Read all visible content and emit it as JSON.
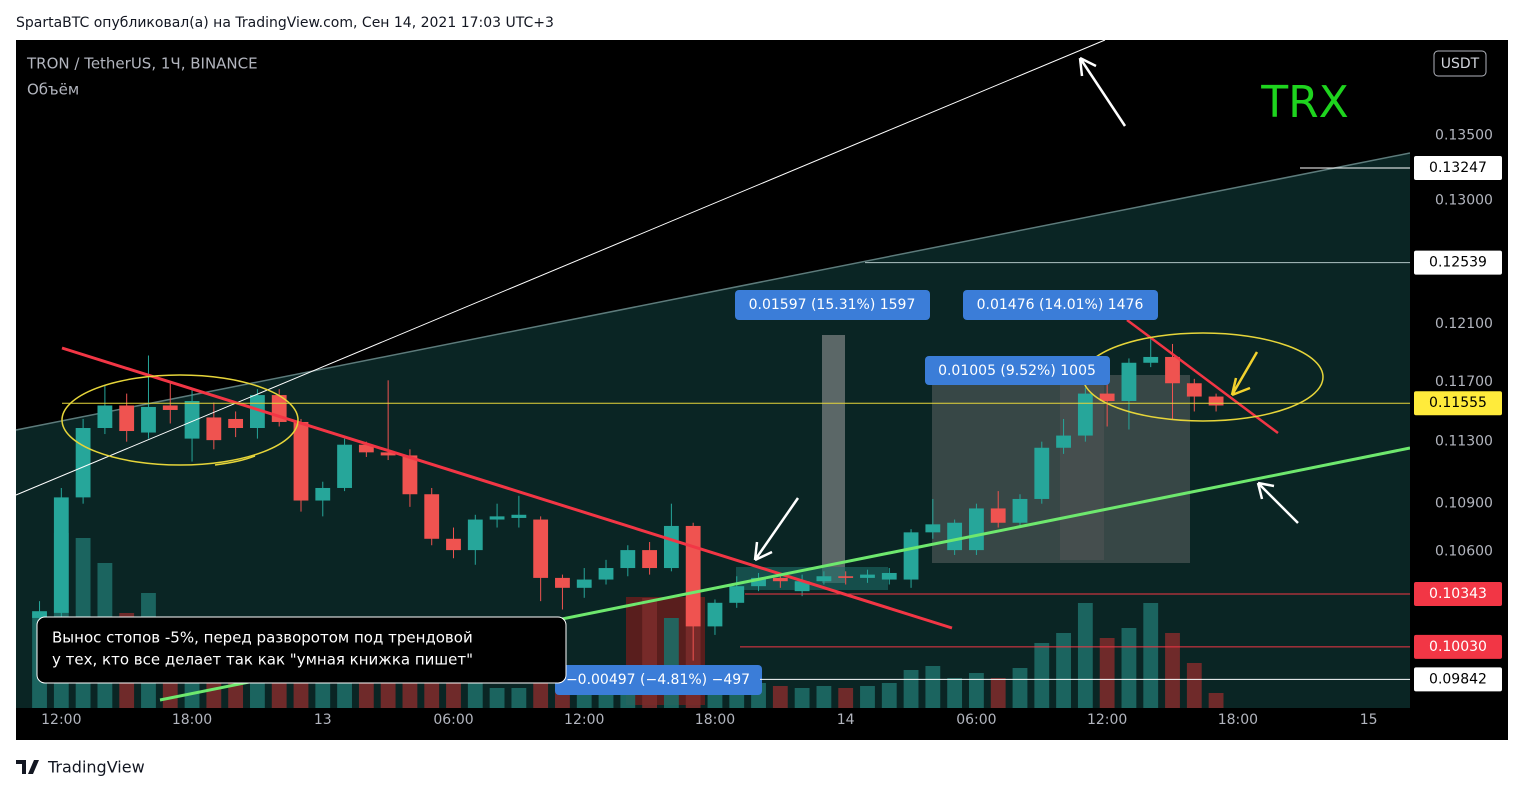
{
  "chart_data": {
    "type": "candlestick",
    "header": "SpartaBTC опубликовал(а) на TradingView.com, Сен 14, 2021 17:03 UTC+3",
    "title": "TRON / TetherUS, 1Ч, BINANCE",
    "volume_label": "Объём",
    "currency": "USDT",
    "annotation_big": "TRX",
    "callout": [
      "Вынос стопов -5%, перед разворотом под трендовой",
      "у тех, кто все делает так как  \"умная книжка пишет\""
    ],
    "measures": [
      "0.01597 (15.31%) 1597",
      "0.01476 (14.01%) 1476",
      "0.01005 (9.52%) 1005",
      "−0.00497 (−4.81%) −497"
    ],
    "footer": "TradingView",
    "log_scale": true,
    "up_color": "#26a69a",
    "down_color": "#ef5350",
    "xlim": [
      -14.08,
      49.9
    ],
    "xticks": [
      {
        "value": -12,
        "label": "12:00"
      },
      {
        "value": -6,
        "label": "18:00"
      },
      {
        "value": 0,
        "label": "13"
      },
      {
        "value": 6,
        "label": "06:00"
      },
      {
        "value": 12,
        "label": "12:00"
      },
      {
        "value": 18,
        "label": "18:00"
      },
      {
        "value": 24,
        "label": "14"
      },
      {
        "value": 30,
        "label": "06:00"
      },
      {
        "value": 36,
        "label": "12:00"
      },
      {
        "value": 42,
        "label": "18:00"
      },
      {
        "value": 48,
        "label": "15"
      }
    ],
    "ylim": [
      0.0968,
      0.1427
    ],
    "yticks": [
      {
        "value": 0.135,
        "label": "0.13500"
      },
      {
        "value": 0.13,
        "label": "0.13000"
      },
      {
        "value": 0.121,
        "label": "0.12100"
      },
      {
        "value": 0.117,
        "label": "0.11700"
      },
      {
        "value": 0.113,
        "label": "0.11300"
      },
      {
        "value": 0.109,
        "label": "0.10900"
      },
      {
        "value": 0.106,
        "label": "0.10600"
      }
    ],
    "price_lines": [
      {
        "value": 0.13247,
        "bg": "#ffffff",
        "fg": "#000000",
        "line": "#ffffff"
      },
      {
        "value": 0.12539,
        "bg": "#ffffff",
        "fg": "#000000",
        "line": "#b0c4c4"
      },
      {
        "value": 0.11555,
        "bg": "#ffeb3b",
        "fg": "#000000",
        "line": "#e6d53a"
      },
      {
        "value": 0.10343,
        "bg": "#f23645",
        "fg": "#ffffff",
        "line": "#f23645"
      },
      {
        "value": 0.1003,
        "label": "0.10030",
        "bg": "#f23645",
        "fg": "#ffffff",
        "line": "#f23645"
      },
      {
        "value": 0.09842,
        "bg": "#ffffff",
        "fg": "#000000",
        "line": "#ffffff"
      }
    ],
    "x": [
      -13,
      -12,
      -11,
      -10,
      -9,
      -8,
      -7,
      -6,
      -5,
      -4,
      -3,
      -2,
      -1,
      0,
      1,
      2,
      3,
      4,
      5,
      6,
      7,
      8,
      9,
      10,
      11,
      12,
      13,
      14,
      15,
      16,
      17,
      18,
      19,
      20,
      21,
      22,
      23,
      24,
      25,
      26,
      27,
      28,
      29,
      30,
      31,
      32,
      33,
      34,
      35,
      36,
      37,
      38,
      39,
      40,
      41
    ],
    "open": [
      0.102,
      0.1023,
      0.1094,
      0.1139,
      0.1154,
      0.1136,
      0.1154,
      0.1132,
      0.1146,
      0.1145,
      0.1139,
      0.1161,
      0.1143,
      0.1092,
      0.11,
      0.1128,
      0.1123,
      0.1121,
      0.1096,
      0.1068,
      0.1061,
      0.108,
      0.1081,
      0.108,
      0.1044,
      0.1038,
      0.1043,
      0.105,
      0.1061,
      0.105,
      0.1076,
      0.1015,
      0.1029,
      0.1039,
      0.1044,
      0.1036,
      0.1042,
      0.1045,
      0.1044,
      0.1043,
      0.1043,
      0.1072,
      0.1061,
      0.1061,
      0.1087,
      0.1078,
      0.1093,
      0.1126,
      0.1134,
      0.1162,
      0.1157,
      0.1183,
      0.1187,
      0.1169,
      0.116
    ],
    "close": [
      0.1024,
      0.1094,
      0.1139,
      0.1154,
      0.1137,
      0.1153,
      0.1151,
      0.1157,
      0.1131,
      0.1139,
      0.1161,
      0.1143,
      0.1092,
      0.11,
      0.1128,
      0.1123,
      0.1121,
      0.1096,
      0.1068,
      0.1061,
      0.108,
      0.1082,
      0.1083,
      0.1044,
      0.1038,
      0.1043,
      0.105,
      0.1061,
      0.105,
      0.1076,
      0.1015,
      0.1029,
      0.1039,
      0.1044,
      0.1042,
      0.1042,
      0.1045,
      0.1044,
      0.1046,
      0.1047,
      0.1072,
      0.1077,
      0.1078,
      0.1087,
      0.1078,
      0.1093,
      0.1126,
      0.1134,
      0.1162,
      0.1157,
      0.1183,
      0.1187,
      0.1169,
      0.116,
      0.1154
    ],
    "high": [
      0.103,
      0.11,
      0.1145,
      0.1168,
      0.1162,
      0.1188,
      0.117,
      0.1165,
      0.1156,
      0.115,
      0.1165,
      0.1165,
      0.1145,
      0.1104,
      0.1132,
      0.113,
      0.1171,
      0.1125,
      0.11,
      0.1075,
      0.1083,
      0.109,
      0.1095,
      0.1082,
      0.1046,
      0.105,
      0.1055,
      0.1064,
      0.1066,
      0.109,
      0.1078,
      0.1031,
      0.1045,
      0.1047,
      0.1047,
      0.1046,
      0.1048,
      0.1048,
      0.1049,
      0.105,
      0.1074,
      0.1093,
      0.108,
      0.109,
      0.1098,
      0.1096,
      0.113,
      0.1145,
      0.1166,
      0.117,
      0.1186,
      0.12,
      0.1196,
      0.1172,
      0.1162
    ],
    "low": [
      0.1015,
      0.102,
      0.109,
      0.1135,
      0.113,
      0.1132,
      0.1142,
      0.1117,
      0.1125,
      0.1133,
      0.1132,
      0.114,
      0.1085,
      0.1082,
      0.1098,
      0.112,
      0.1118,
      0.1088,
      0.1064,
      0.1056,
      0.1052,
      0.1075,
      0.1075,
      0.103,
      0.1025,
      0.1032,
      0.104,
      0.1045,
      0.1046,
      0.1048,
      0.0995,
      0.101,
      0.1026,
      0.1036,
      0.1038,
      0.1033,
      0.104,
      0.104,
      0.1041,
      0.104,
      0.1038,
      0.1068,
      0.1058,
      0.1058,
      0.1075,
      0.1075,
      0.109,
      0.1122,
      0.113,
      0.114,
      0.1138,
      0.118,
      0.1145,
      0.115,
      0.115
    ],
    "volume_lim": [
      0,
      668
    ],
    "volume": [
      95,
      175,
      170,
      145,
      95,
      115,
      70,
      60,
      55,
      40,
      45,
      35,
      30,
      25,
      30,
      25,
      30,
      25,
      25,
      25,
      25,
      20,
      20,
      25,
      20,
      25,
      20,
      30,
      110,
      90,
      110,
      25,
      25,
      25,
      22,
      20,
      22,
      20,
      22,
      25,
      38,
      42,
      30,
      35,
      30,
      40,
      65,
      75,
      105,
      70,
      80,
      105,
      75,
      45,
      15
    ]
  }
}
